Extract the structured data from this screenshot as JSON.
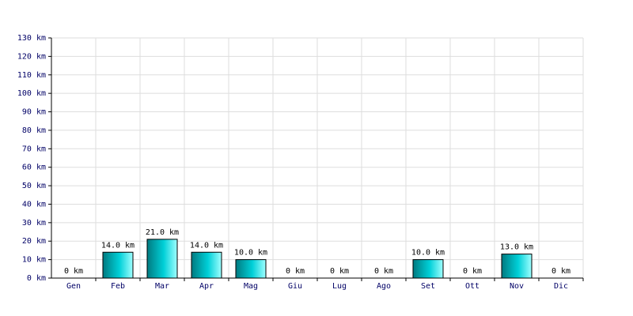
{
  "chart_data": {
    "type": "bar",
    "categories": [
      "Gen",
      "Feb",
      "Mar",
      "Apr",
      "Mag",
      "Giu",
      "Lug",
      "Ago",
      "Set",
      "Ott",
      "Nov",
      "Dic"
    ],
    "values": [
      0,
      14,
      21,
      14,
      10,
      0,
      0,
      0,
      10,
      0,
      13,
      0
    ],
    "value_labels": [
      "0 km",
      "14.0 km",
      "21.0 km",
      "14.0 km",
      "10.0 km",
      "0 km",
      "0 km",
      "0 km",
      "10.0 km",
      "0 km",
      "13.0 km",
      "0 km"
    ],
    "color": "#00d0d8",
    "ylim": [
      0,
      130
    ],
    "yticks": [
      {
        "value": 0,
        "label": "0 km"
      },
      {
        "value": 10,
        "label": "10 km"
      },
      {
        "value": 20,
        "label": "20 km"
      },
      {
        "value": 30,
        "label": "30 km"
      },
      {
        "value": 40,
        "label": "40 km"
      },
      {
        "value": 50,
        "label": "50 km"
      },
      {
        "value": 60,
        "label": "60 km"
      },
      {
        "value": 70,
        "label": "70 km"
      },
      {
        "value": 80,
        "label": "80 km"
      },
      {
        "value": 90,
        "label": "90 km"
      },
      {
        "value": 100,
        "label": "100 km"
      },
      {
        "value": 110,
        "label": "110 km"
      },
      {
        "value": 120,
        "label": "120 km"
      },
      {
        "value": 130,
        "label": "130 km"
      }
    ],
    "grid": true
  }
}
